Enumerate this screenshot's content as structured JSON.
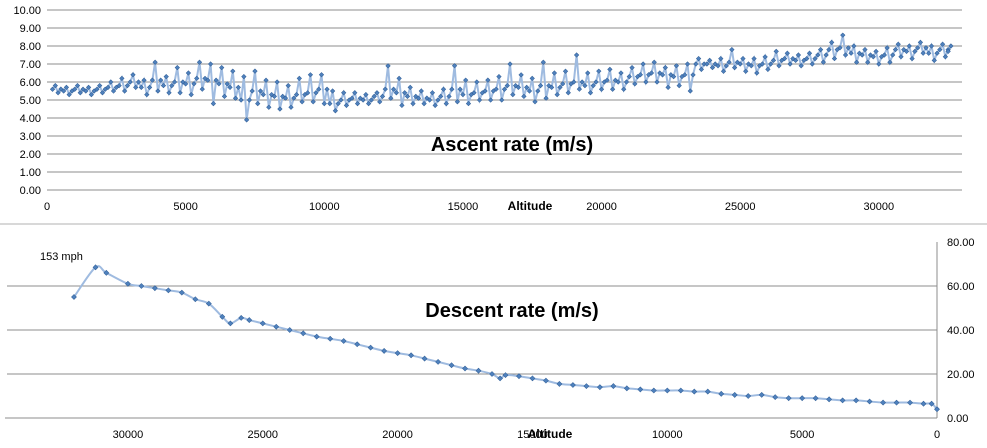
{
  "chart_data": [
    {
      "type": "line",
      "title": "Ascent rate (m/s)",
      "xlabel": "Altitude",
      "ylabel": "",
      "xlim": [
        0,
        33000
      ],
      "ylim": [
        0,
        10
      ],
      "x_ticks": [
        0,
        5000,
        10000,
        15000,
        20000,
        25000,
        30000
      ],
      "y_ticks": [
        "0.00",
        "1.00",
        "2.00",
        "3.00",
        "4.00",
        "5.00",
        "6.00",
        "7.00",
        "8.00",
        "9.00",
        "10.00"
      ],
      "series": [
        {
          "name": "Ascent rate",
          "x": [
            200,
            600,
            1000,
            1400,
            1800,
            2200,
            2600,
            3000,
            3400,
            3800,
            4200,
            4600,
            5000,
            5400,
            5800,
            6200,
            6600,
            7000,
            7400,
            7800,
            8200,
            8600,
            9000,
            9400,
            9800,
            10200,
            10600,
            11000,
            11400,
            11800,
            12200,
            12600,
            13000,
            13400,
            13800,
            14200,
            14600,
            15000,
            15400,
            15800,
            16200,
            16600,
            17000,
            17400,
            17800,
            18200,
            18600,
            19000,
            19400,
            19800,
            20200,
            20600,
            21000,
            21400,
            21800,
            22200,
            22600,
            23000,
            23400,
            23800,
            24200,
            24600,
            25000,
            25400,
            25800,
            26200,
            26600,
            27000,
            27400,
            27800,
            28200,
            28600,
            29000,
            29400,
            29800,
            30200,
            30600,
            31000,
            31400,
            31800,
            32200,
            32500
          ],
          "y": [
            5.6,
            5.5,
            5.6,
            5.5,
            5.6,
            5.7,
            5.8,
            6.0,
            5.7,
            6.1,
            5.8,
            6.0,
            5.9,
            6.2,
            6.1,
            5.9,
            5.7,
            5.0,
            5.5,
            5.3,
            5.2,
            5.1,
            5.3,
            5.4,
            5.6,
            4.8,
            5.0,
            5.1,
            5.0,
            5.2,
            5.6,
            5.4,
            5.2,
            5.1,
            5.0,
            5.2,
            5.6,
            5.3,
            5.4,
            5.5,
            5.6,
            5.8,
            5.7,
            5.5,
            5.8,
            5.7,
            5.9,
            6.0,
            5.8,
            6.0,
            6.1,
            6.0,
            6.3,
            6.4,
            6.5,
            6.4,
            6.3,
            6.4,
            7.0,
            7.0,
            6.9,
            7.1,
            7.0,
            6.9,
            7.0,
            7.2,
            7.3,
            7.2,
            7.3,
            7.5,
            7.8,
            7.9,
            7.6,
            7.5,
            7.4,
            7.5,
            7.8,
            7.7,
            7.9,
            7.6,
            7.8,
            7.7
          ]
        }
      ],
      "series_low": [
        5.4,
        5.3,
        5.4,
        5.3,
        5.4,
        5.5,
        5.5,
        5.7,
        5.3,
        5.5,
        5.4,
        5.4,
        5.3,
        5.6,
        4.8,
        5.2,
        5.1,
        3.9,
        4.8,
        4.6,
        4.5,
        4.6,
        4.9,
        4.9,
        4.8,
        4.4,
        4.7,
        4.8,
        4.8,
        4.9,
        5.1,
        4.7,
        4.8,
        4.8,
        4.7,
        4.8,
        4.9,
        4.8,
        5.0,
        5.0,
        5.0,
        5.3,
        5.2,
        4.9,
        5.1,
        5.3,
        5.4,
        5.6,
        5.4,
        5.6,
        5.6,
        5.6,
        5.9,
        6.0,
        6.0,
        5.7,
        5.8,
        5.5,
        6.7,
        6.8,
        6.6,
        6.8,
        6.6,
        6.5,
        6.7,
        6.9,
        7.0,
        6.9,
        7.0,
        7.1,
        7.3,
        7.5,
        7.1,
        7.1,
        7.0,
        7.1,
        7.4,
        7.3,
        7.6,
        7.2,
        7.4,
        7.4
      ],
      "series_high": [
        5.8,
        5.7,
        5.8,
        5.7,
        5.8,
        6.0,
        6.2,
        6.4,
        6.1,
        7.1,
        6.3,
        6.8,
        6.5,
        7.1,
        7.0,
        6.8,
        6.6,
        6.3,
        6.6,
        6.1,
        6.0,
        5.8,
        6.2,
        6.4,
        6.4,
        5.5,
        5.4,
        5.4,
        5.3,
        5.4,
        6.9,
        6.2,
        5.7,
        5.5,
        5.4,
        5.6,
        6.9,
        6.1,
        6.0,
        6.1,
        6.3,
        7.0,
        6.4,
        6.2,
        7.1,
        6.5,
        6.6,
        7.5,
        6.5,
        6.6,
        6.7,
        6.5,
        6.8,
        7.0,
        7.1,
        6.8,
        6.9,
        7.0,
        7.3,
        7.2,
        7.3,
        7.8,
        7.3,
        7.3,
        7.4,
        7.7,
        7.6,
        7.5,
        7.6,
        7.8,
        8.2,
        8.6,
        8.0,
        7.8,
        7.7,
        7.9,
        8.1,
        8.0,
        8.2,
        8.0,
        8.1,
        8.0
      ]
    },
    {
      "type": "line",
      "title": "Descent rate (m/s)",
      "xlabel": "Altitude",
      "ylabel": "",
      "x_reversed": true,
      "xlim": [
        33000,
        0
      ],
      "ylim": [
        0,
        80
      ],
      "x_ticks": [
        30000,
        25000,
        20000,
        15000,
        10000,
        5000,
        0
      ],
      "y_ticks": [
        "0.00",
        "20.00",
        "40.00",
        "60.00",
        "80.00"
      ],
      "annotation": "153 mph",
      "series": [
        {
          "name": "Descent rate",
          "x": [
            32000,
            31200,
            30800,
            30000,
            29500,
            29000,
            28500,
            28000,
            27500,
            27000,
            26500,
            26200,
            25800,
            25500,
            25000,
            24500,
            24000,
            23500,
            23000,
            22500,
            22000,
            21500,
            21000,
            20500,
            20000,
            19500,
            19000,
            18500,
            18000,
            17500,
            17000,
            16500,
            16200,
            16000,
            15500,
            15000,
            14500,
            14000,
            13500,
            13000,
            12500,
            12000,
            11500,
            11000,
            10500,
            10000,
            9500,
            9000,
            8500,
            8000,
            7500,
            7000,
            6500,
            6000,
            5500,
            5000,
            4500,
            4000,
            3500,
            3000,
            2500,
            2000,
            1500,
            1000,
            500,
            200,
            0
          ],
          "y": [
            55,
            68.5,
            66,
            61,
            60,
            59,
            58,
            57,
            54,
            52,
            46,
            43,
            45.5,
            44.5,
            43,
            41.5,
            40,
            38.5,
            37,
            36,
            35,
            33.5,
            32,
            30.5,
            29.5,
            28.5,
            27,
            25.5,
            24,
            22.5,
            21.5,
            20,
            18,
            19.5,
            19,
            18,
            17,
            15.5,
            15,
            14.5,
            14,
            14.5,
            13.5,
            13,
            12.5,
            12.5,
            12.5,
            12,
            12,
            11,
            10.5,
            10,
            10.5,
            9.5,
            9,
            9,
            9,
            8.5,
            8,
            8,
            7.5,
            7,
            7,
            7,
            6.5,
            6.5,
            4
          ]
        }
      ]
    }
  ]
}
